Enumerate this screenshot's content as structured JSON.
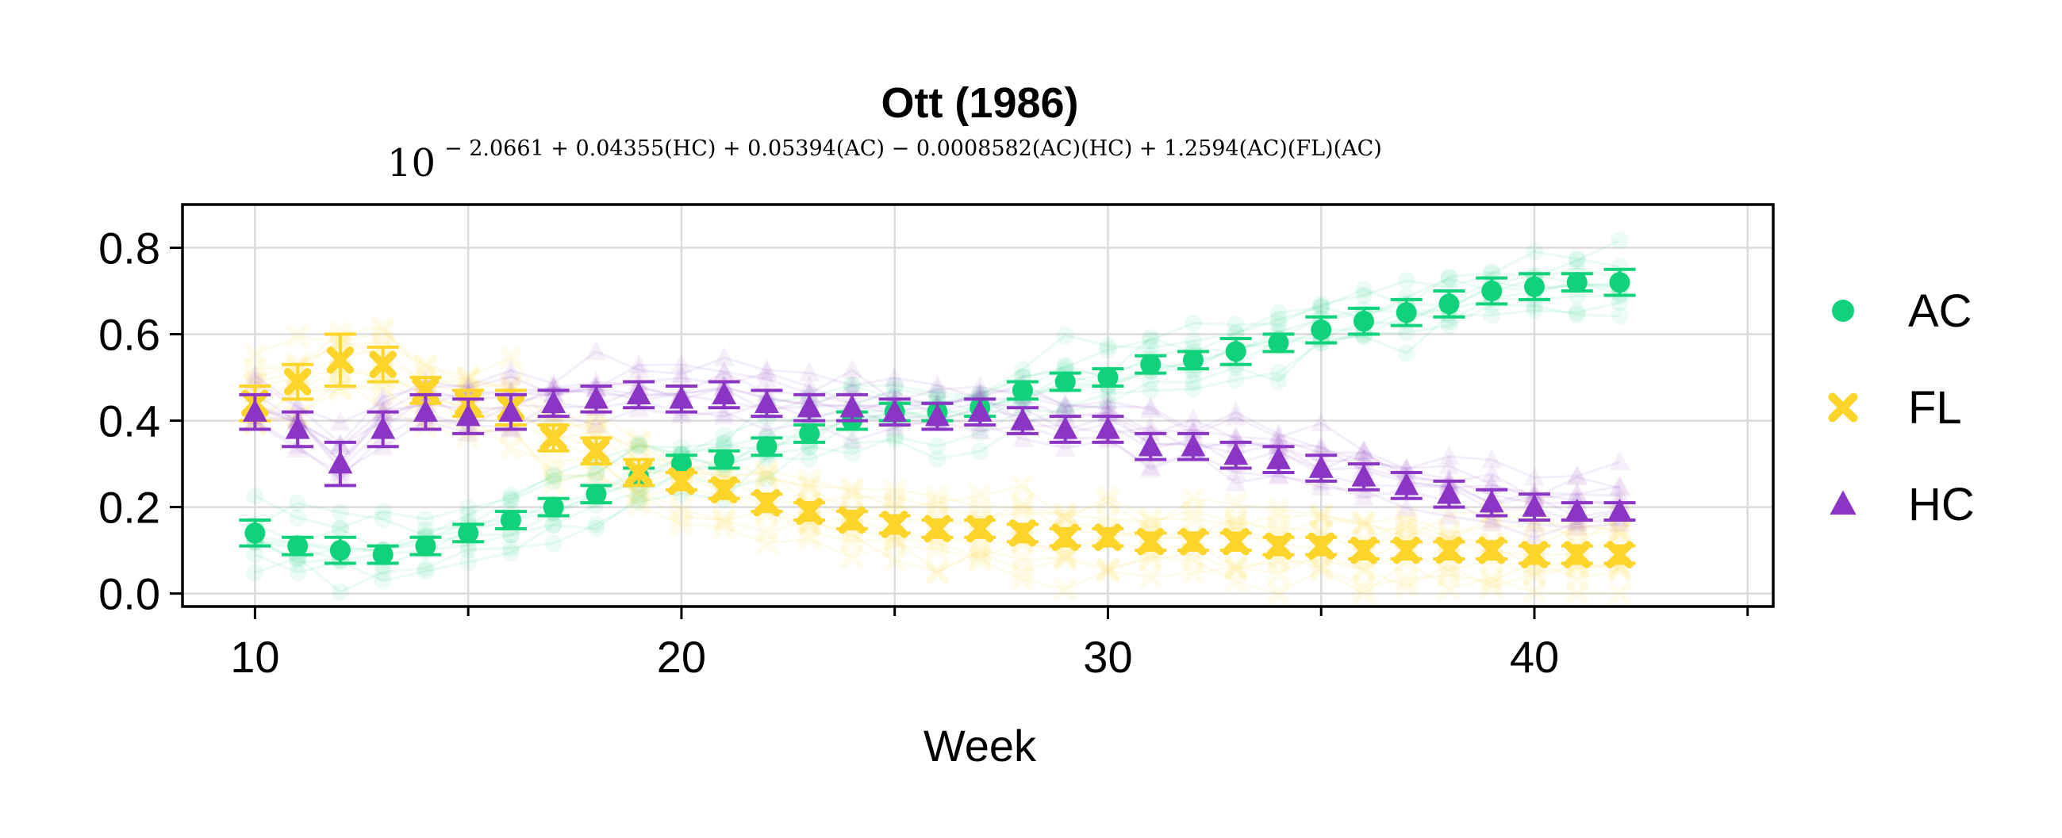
{
  "chart_data": {
    "type": "scatter",
    "title": "Ott (1986)",
    "subtitle": {
      "base": "10",
      "exponent": "− 2.0661 + 0.04355(HC) + 0.05394(AC) − 0.0008582(AC)(HC) + 1.2594(AC)(FL)(AC)"
    },
    "xlabel": "Week",
    "ylabel": "",
    "xlim": [
      8.3,
      45.6
    ],
    "ylim": [
      -0.03,
      0.9
    ],
    "x_major_ticks": [
      10,
      20,
      30,
      40
    ],
    "x_minor_ticks": [
      15,
      25,
      35,
      45
    ],
    "y_ticks": [
      0.0,
      0.2,
      0.4,
      0.6,
      0.8
    ],
    "x_tick_labels": [
      "10",
      "20",
      "30",
      "40"
    ],
    "y_tick_labels": [
      "0.0",
      "0.2",
      "0.4",
      "0.6",
      "0.8"
    ],
    "grid": true,
    "legend_position": "right",
    "series": [
      {
        "name": "AC",
        "color": "#10d27a",
        "marker": "circle",
        "x": [
          10,
          11,
          12,
          13,
          14,
          15,
          16,
          17,
          18,
          19,
          20,
          21,
          22,
          23,
          24,
          25,
          26,
          27,
          28,
          29,
          30,
          31,
          32,
          33,
          34,
          35,
          36,
          37,
          38,
          39,
          40,
          41,
          42
        ],
        "y": [
          0.14,
          0.11,
          0.1,
          0.09,
          0.11,
          0.14,
          0.17,
          0.2,
          0.23,
          0.27,
          0.3,
          0.31,
          0.34,
          0.37,
          0.4,
          0.42,
          0.42,
          0.43,
          0.47,
          0.49,
          0.5,
          0.53,
          0.54,
          0.56,
          0.58,
          0.61,
          0.63,
          0.65,
          0.67,
          0.7,
          0.71,
          0.72,
          0.72
        ],
        "err": [
          0.03,
          0.02,
          0.03,
          0.02,
          0.02,
          0.02,
          0.02,
          0.02,
          0.02,
          0.02,
          0.02,
          0.02,
          0.02,
          0.02,
          0.02,
          0.02,
          0.02,
          0.02,
          0.02,
          0.02,
          0.02,
          0.02,
          0.02,
          0.03,
          0.02,
          0.03,
          0.03,
          0.03,
          0.03,
          0.03,
          0.03,
          0.02,
          0.03
        ]
      },
      {
        "name": "FL",
        "color": "#fdd42a",
        "marker": "x",
        "x": [
          10,
          11,
          12,
          13,
          14,
          15,
          16,
          17,
          18,
          19,
          20,
          21,
          22,
          23,
          24,
          25,
          26,
          27,
          28,
          29,
          30,
          31,
          32,
          33,
          34,
          35,
          36,
          37,
          38,
          39,
          40,
          41,
          42
        ],
        "y": [
          0.44,
          0.49,
          0.54,
          0.53,
          0.47,
          0.44,
          0.43,
          0.36,
          0.33,
          0.28,
          0.26,
          0.24,
          0.21,
          0.19,
          0.17,
          0.16,
          0.15,
          0.15,
          0.14,
          0.13,
          0.13,
          0.12,
          0.12,
          0.12,
          0.11,
          0.11,
          0.1,
          0.1,
          0.1,
          0.1,
          0.09,
          0.09,
          0.09
        ],
        "err": [
          0.04,
          0.04,
          0.06,
          0.04,
          0.03,
          0.03,
          0.04,
          0.03,
          0.03,
          0.03,
          0.02,
          0.02,
          0.02,
          0.02,
          0.02,
          0.02,
          0.02,
          0.02,
          0.02,
          0.02,
          0.02,
          0.02,
          0.02,
          0.02,
          0.02,
          0.02,
          0.02,
          0.02,
          0.02,
          0.02,
          0.02,
          0.02,
          0.02
        ]
      },
      {
        "name": "HC",
        "color": "#8a35c4",
        "marker": "triangle",
        "x": [
          10,
          11,
          12,
          13,
          14,
          15,
          16,
          17,
          18,
          19,
          20,
          21,
          22,
          23,
          24,
          25,
          26,
          27,
          28,
          29,
          30,
          31,
          32,
          33,
          34,
          35,
          36,
          37,
          38,
          39,
          40,
          41,
          42
        ],
        "y": [
          0.42,
          0.38,
          0.3,
          0.38,
          0.42,
          0.41,
          0.42,
          0.44,
          0.45,
          0.46,
          0.45,
          0.46,
          0.44,
          0.43,
          0.43,
          0.42,
          0.41,
          0.42,
          0.4,
          0.38,
          0.38,
          0.34,
          0.34,
          0.32,
          0.31,
          0.29,
          0.27,
          0.25,
          0.23,
          0.21,
          0.2,
          0.19,
          0.19
        ],
        "err": [
          0.04,
          0.04,
          0.05,
          0.04,
          0.04,
          0.04,
          0.04,
          0.03,
          0.03,
          0.03,
          0.03,
          0.03,
          0.03,
          0.03,
          0.03,
          0.03,
          0.03,
          0.03,
          0.03,
          0.03,
          0.03,
          0.03,
          0.03,
          0.03,
          0.03,
          0.03,
          0.03,
          0.03,
          0.03,
          0.03,
          0.03,
          0.02,
          0.02
        ]
      }
    ]
  }
}
